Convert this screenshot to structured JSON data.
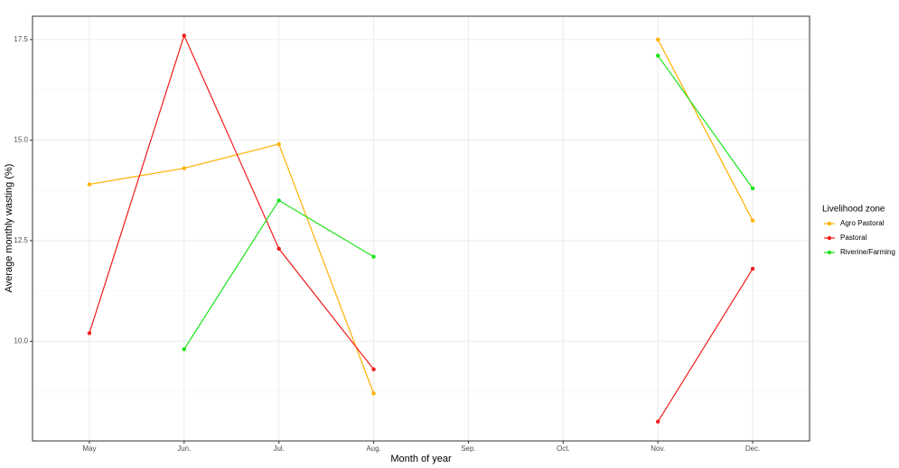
{
  "chart_data": {
    "type": "line",
    "x_label": "Month of year",
    "y_label": "Average monthly wasting (%)",
    "categories": [
      "May",
      "Jun.",
      "Jul.",
      "Aug.",
      "Sep.",
      "Oct.",
      "Nov.",
      "Dec."
    ],
    "series": [
      {
        "name": "Agro Pastoral",
        "color": "#ffb000",
        "values": [
          13.9,
          14.3,
          14.9,
          8.7,
          null,
          null,
          17.5,
          13.0
        ]
      },
      {
        "name": "Pastoral",
        "color": "#f21b1b",
        "values": [
          10.2,
          17.6,
          12.3,
          9.3,
          null,
          null,
          8.0,
          11.8
        ]
      },
      {
        "name": "Riverine/Farming",
        "color": "#1be31b",
        "values": [
          null,
          9.8,
          13.5,
          12.1,
          null,
          null,
          17.1,
          13.8
        ]
      }
    ],
    "ylim": [
      7.52,
      18.08
    ],
    "yticks": [
      {
        "value": 10,
        "label": "10.0"
      },
      {
        "value": 12.5,
        "label": "12.5"
      },
      {
        "value": 15,
        "label": "15.0"
      },
      {
        "value": 17.5,
        "label": "17.5"
      }
    ],
    "grid": true,
    "legend_title": "Livelihood zone",
    "legend_position": "right"
  }
}
